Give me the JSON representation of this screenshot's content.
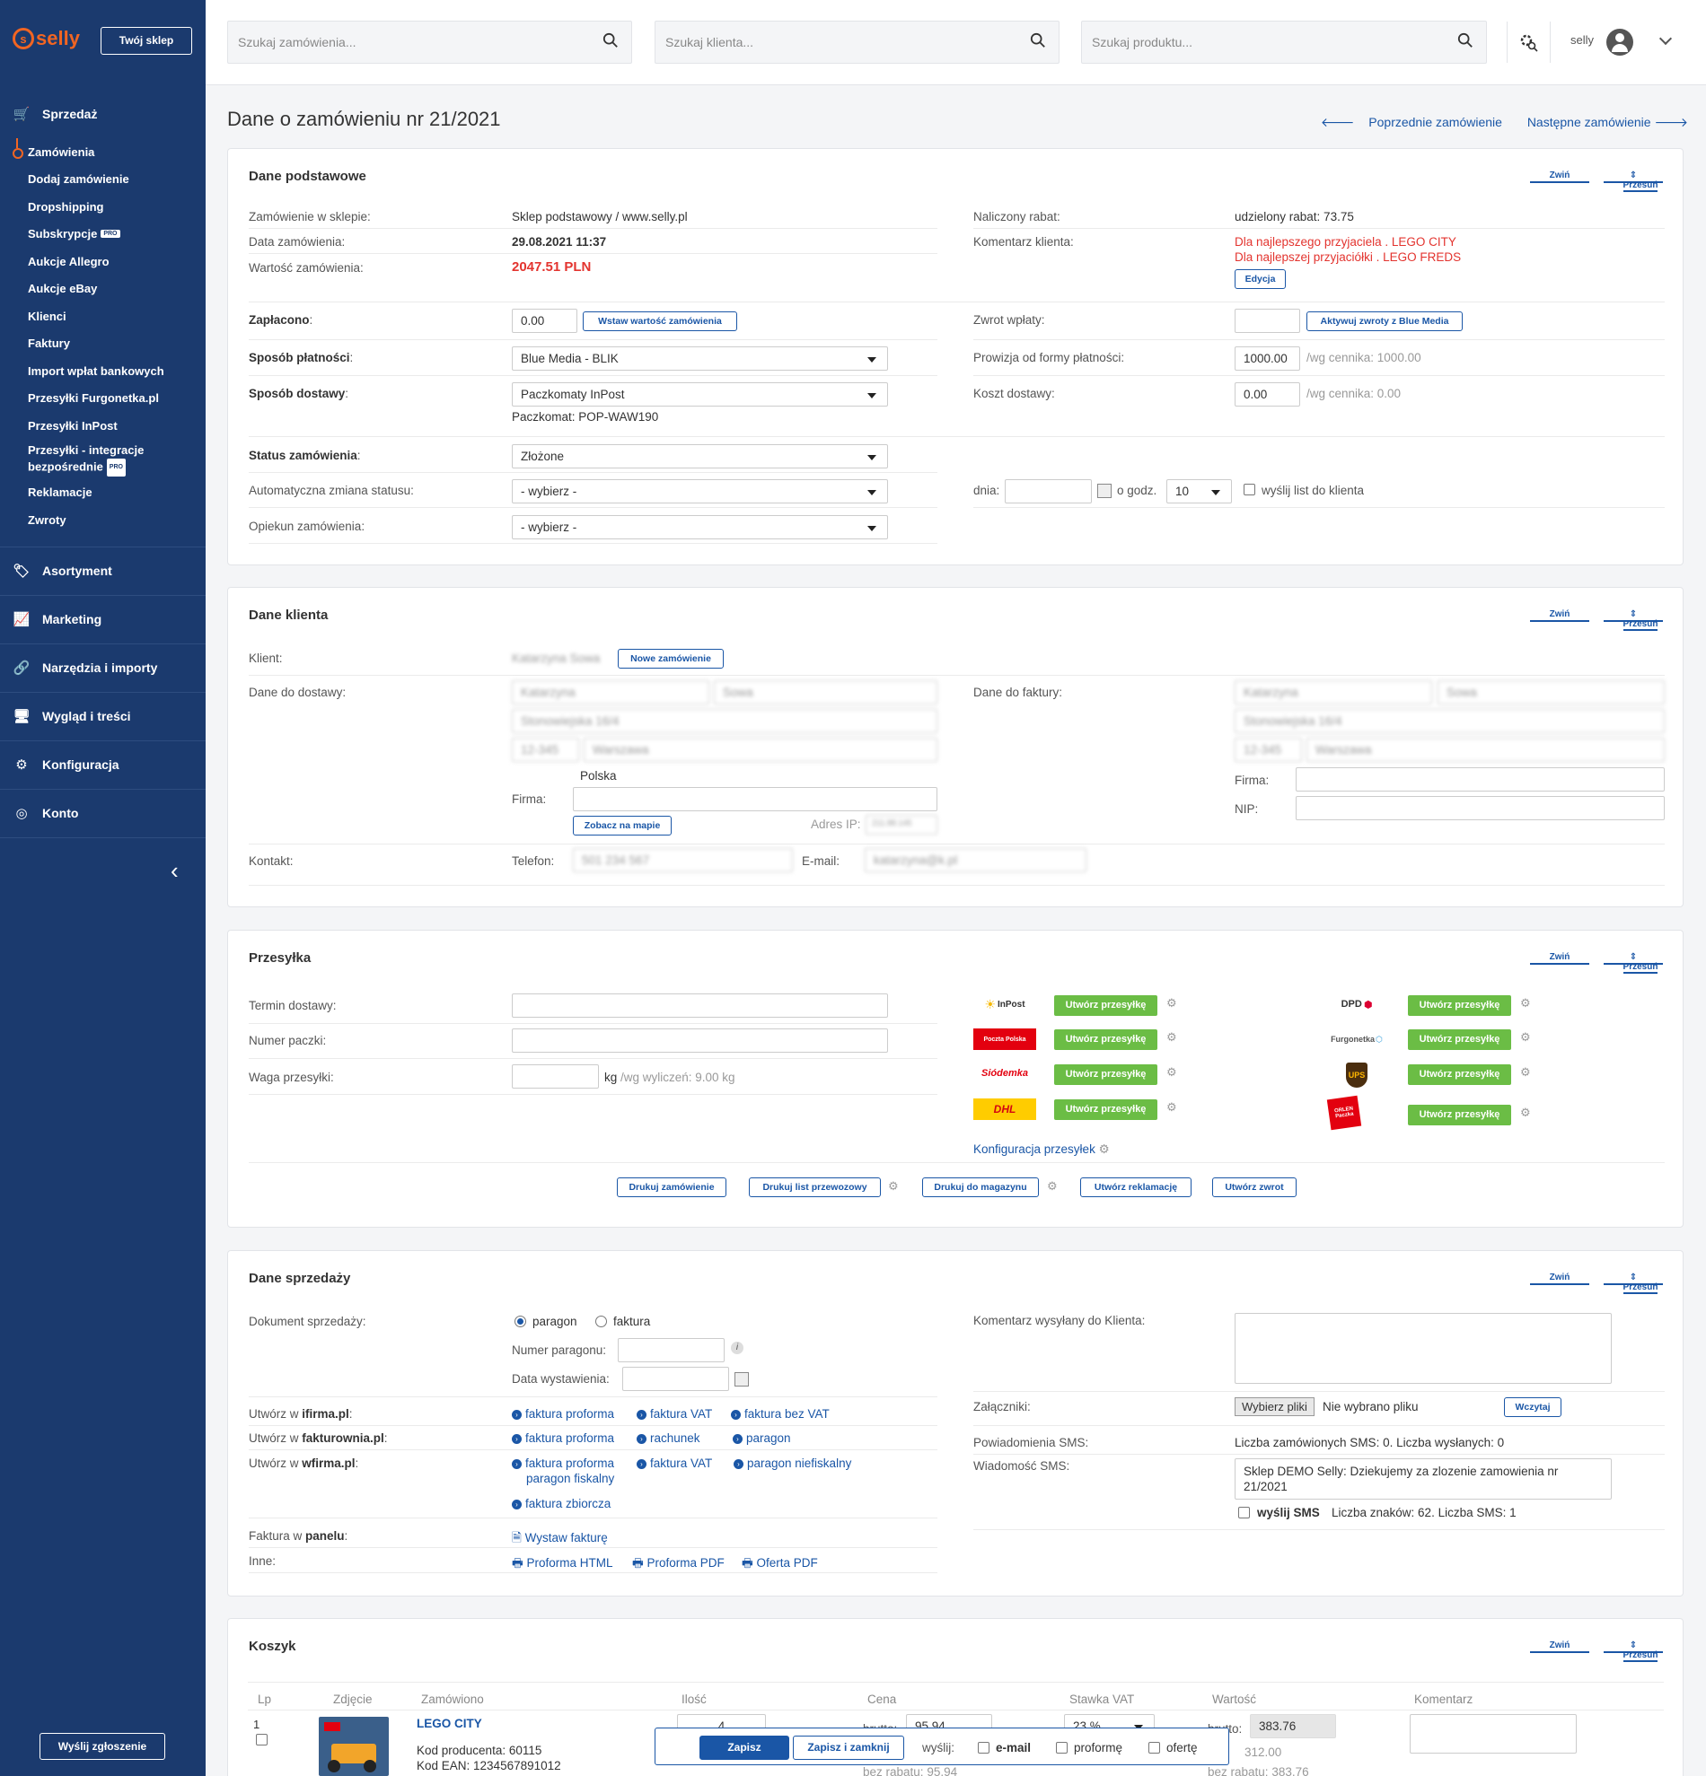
{
  "sidebar": {
    "logo": "selly",
    "shop_button": "Twój sklep",
    "sales_section": "Sprzedaż",
    "sales_items": [
      "Zamówienia",
      "Dodaj zamówienie",
      "Dropshipping",
      "Subskrypcje",
      "Aukcje Allegro",
      "Aukcje eBay",
      "Klienci",
      "Faktury",
      "Import wpłat bankowych",
      "Przesyłki Furgonetka.pl",
      "Przesyłki InPost",
      "Przesyłki - integracje bezpośrednie",
      "Reklamacje",
      "Zwroty"
    ],
    "pro_badge": "PRO",
    "sections": [
      "Asortyment",
      "Marketing",
      "Narzędzia i importy",
      "Wygląd i treści",
      "Konfiguracja",
      "Konto"
    ],
    "ticket_button": "Wyślij zgłoszenie"
  },
  "topbar": {
    "search_orders": "Szukaj zamówienia...",
    "search_client": "Szukaj klienta...",
    "search_product": "Szukaj produktu...",
    "user": "selly"
  },
  "page": {
    "title": "Dane o zamówieniu nr 21/2021",
    "prev": "Poprzednie zamówienie",
    "next": "Następne zamówienie",
    "collapse": "Zwiń",
    "move": "Przesuń"
  },
  "basic": {
    "title": "Dane podstawowe",
    "shop_label": "Zamówienie w sklepie:",
    "shop_value": "Sklep podstawowy / www.selly.pl",
    "date_label": "Data zamówienia:",
    "date_value": "29.08.2021 11:37",
    "value_label": "Wartość zamówienia:",
    "value_value": "2047.51 PLN",
    "discount_label": "Naliczony rabat:",
    "discount_value": "udzielony rabat: 73.75",
    "comment_label": "Komentarz klienta:",
    "comment_line1": "Dla najlepszego przyjaciela . LEGO CITY",
    "comment_line2": "Dla najlepszej przyjaciółki . LEGO FREDS",
    "edit_button": "Edycja",
    "paid_label": "Zapłacono",
    "paid_value": "0.00",
    "insert_value_button": "Wstaw wartość zamówienia",
    "refund_label": "Zwrot wpłaty:",
    "refund_button": "Aktywuj zwroty z Blue Media",
    "payment_label": "Sposób płatności",
    "payment_value": "Blue Media - BLIK",
    "commission_label": "Prowizja od formy płatności:",
    "commission_value": "1000.00",
    "commission_note": "/wg cennika: 1000.00",
    "delivery_label": "Sposób dostawy",
    "delivery_value": "Paczkomaty InPost",
    "paczkomat": "Paczkomat: POP-WAW190",
    "delivery_cost_label": "Koszt dostawy:",
    "delivery_cost_value": "0.00",
    "delivery_cost_note": "/wg cennika: 0.00",
    "status_label": "Status zamówienia",
    "status_value": "Złożone",
    "auto_status_label": "Automatyczna zmiana statusu:",
    "auto_status_value": "- wybierz -",
    "day_label": "dnia:",
    "hour_label": "o godz.",
    "hour_value": "10",
    "send_letter": "wyślij list do klienta",
    "guardian_label": "Opiekun zamówienia:",
    "guardian_value": "- wybierz -"
  },
  "client": {
    "title": "Dane klienta",
    "client_label": "Klient:",
    "client_name": "Katarzyna Sowa",
    "new_order_button": "Nowe zamówienie",
    "shipping_label": "Dane do dostawy:",
    "first_name": "Katarzyna",
    "last_name": "Sowa",
    "street": "Stonowiejska 16/4",
    "zip": "12-345",
    "city": "Warszawa",
    "country": "Polska",
    "company_label": "Firma:",
    "map_button": "Zobacz na mapie",
    "ip_label": "Adres IP:",
    "ip_value": "211.88.145",
    "invoice_label": "Dane do faktury:",
    "nip_label": "NIP:",
    "contact_label": "Kontakt:",
    "phone_label": "Telefon:",
    "phone_value": "501 234 567",
    "email_label": "E-mail:",
    "email_value": "katarzyna@k.pl"
  },
  "shipment": {
    "title": "Przesyłka",
    "term_label": "Termin dostawy:",
    "number_label": "Numer paczki:",
    "weight_label": "Waga przesyłki:",
    "weight_unit": "kg",
    "weight_note": "/wg wyliczeń: 9.00 kg",
    "create_button": "Utwórz przesyłkę",
    "carriers_left": [
      "InPost",
      "Poczta Polska",
      "Siódemka",
      "DHL"
    ],
    "carriers_right": [
      "DPD",
      "Furgonetka",
      "UPS",
      "ORLEN Paczka"
    ],
    "config_link": "Konfiguracja przesyłek",
    "print_order": "Drukuj zamówienie",
    "print_waybill": "Drukuj list przewozowy",
    "print_warehouse": "Drukuj do magazynu",
    "create_complaint": "Utwórz reklamację",
    "create_return": "Utwórz zwrot"
  },
  "sales": {
    "title": "Dane sprzedaży",
    "doc_label": "Dokument sprzedaży:",
    "opt_receipt": "paragon",
    "opt_invoice": "faktura",
    "receipt_no_label": "Numer paragonu:",
    "issue_date_label": "Data wystawienia:",
    "ifirma_label": "Utwórz w ",
    "ifirma_name": "ifirma.pl",
    "ifirma_links": [
      "faktura proforma",
      "faktura VAT",
      "faktura bez VAT"
    ],
    "fakturownia_name": "fakturownia.pl",
    "fakturownia_links": [
      "faktura proforma",
      "rachunek",
      "paragon"
    ],
    "wfirma_name": "wfirma.pl",
    "wfirma_links": [
      "faktura proforma",
      "faktura VAT",
      "paragon niefiskalny",
      "paragon fiskalny",
      "faktura zbiorcza"
    ],
    "panel_label": "Faktura w ",
    "panel_name": "panelu",
    "panel_link": "Wystaw fakturę",
    "other_label": "Inne:",
    "other_links": [
      "Proforma HTML",
      "Proforma PDF",
      "Oferta PDF"
    ],
    "comment_label": "Komentarz wysyłany do Klienta:",
    "attach_label": "Załączniki:",
    "choose_files": "Wybierz pliki",
    "no_file": "Nie wybrano pliku",
    "upload_button": "Wczytaj",
    "sms_notif_label": "Powiadomienia SMS:",
    "sms_notif_value": "Liczba zamówionych SMS: 0. Liczba wysłanych: 0",
    "sms_msg_label": "Wiadomość SMS:",
    "sms_msg_value": "Sklep DEMO Selly: Dziekujemy za zlozenie zamowienia nr 21/2021",
    "send_sms": "wyślij SMS",
    "sms_count": "Liczba znaków: 62. Liczba SMS: 1"
  },
  "cart": {
    "title": "Koszyk",
    "headers": [
      "Lp",
      "Zdjęcie",
      "Zamówiono",
      "Ilość",
      "Cena",
      "Stawka VAT",
      "Wartość",
      "Komentarz"
    ],
    "row": {
      "lp": "1",
      "name": "LEGO CITY",
      "producer_code": "Kod producenta: 60115",
      "ean": "Kod EAN: 1234567891012",
      "qty": "4",
      "gross_label": "brutto:",
      "price": "95.94",
      "vat": "23 %",
      "value": "383.76",
      "value_net": "312.00",
      "no_discount_label": "bez rabatu:",
      "no_discount_price": "95.94",
      "no_discount_value": "383.76"
    }
  },
  "savebar": {
    "save": "Zapisz",
    "save_close": "Zapisz i zamknij",
    "send_label": "wyślij:",
    "opt_email": "e-mail",
    "opt_proforma": "proformę",
    "opt_offer": "ofertę"
  }
}
